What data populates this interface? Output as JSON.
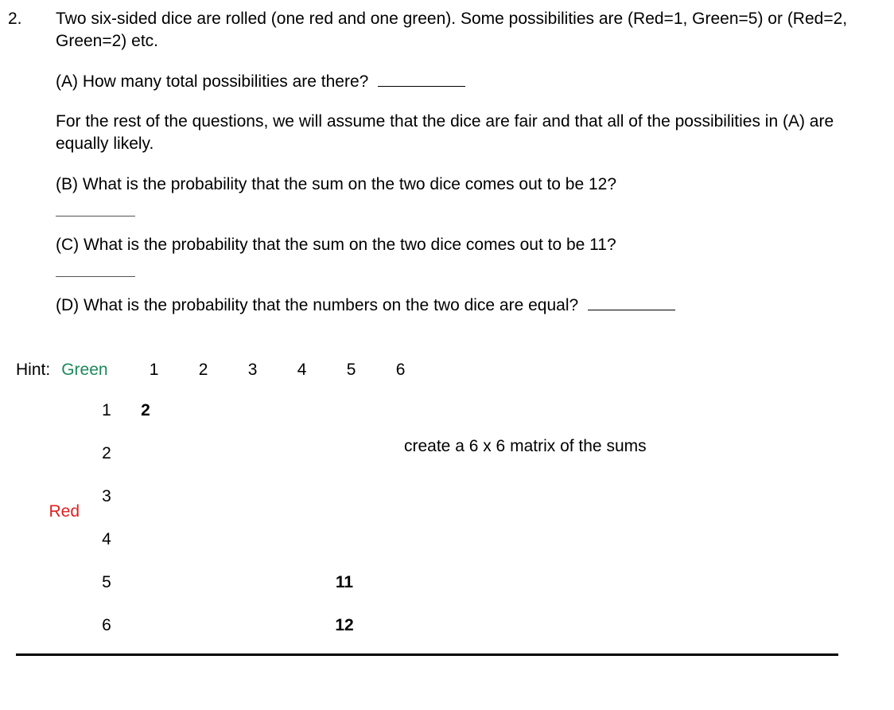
{
  "problem": {
    "number": "2.",
    "intro": "Two six-sided dice are rolled (one red and one green). Some possibilities are (Red=1, Green=5) or (Red=2, Green=2) etc.",
    "partA": "(A) How many total possibilities are there?",
    "assumption": "For the rest of the questions, we will assume that the dice are fair and that all of the possibilities in (A) are equally likely.",
    "partB": "(B) What is the probability that the sum on the two dice comes out to be 12?",
    "partC": "(C) What is the probability that the sum on the two dice comes out to be 11?",
    "partD": "(D) What is the probability that the numbers on the two dice are equal?"
  },
  "hint": {
    "label": "Hint:",
    "green_label": "Green",
    "red_label": "Red",
    "green_headers": [
      "1",
      "2",
      "3",
      "4",
      "5",
      "6"
    ],
    "red_headers": [
      "1",
      "2",
      "3",
      "4",
      "5",
      "6"
    ],
    "note": "create a 6 x 6 matrix of the sums",
    "cells": {
      "r1c1": "2",
      "r5c6": "11",
      "r6c6": "12"
    },
    "colors": {
      "green": "#1b8a5a",
      "red": "#e02020"
    }
  }
}
